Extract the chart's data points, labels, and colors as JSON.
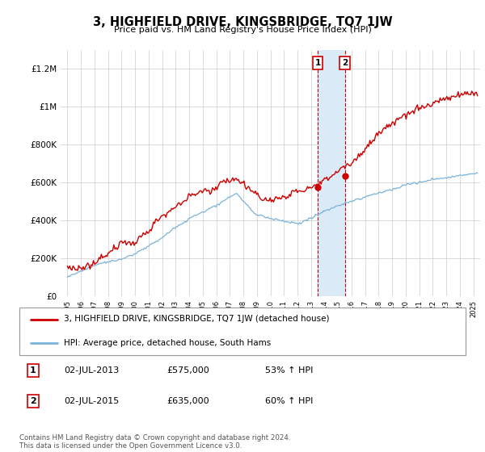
{
  "title": "3, HIGHFIELD DRIVE, KINGSBRIDGE, TQ7 1JW",
  "subtitle": "Price paid vs. HM Land Registry's House Price Index (HPI)",
  "ylabel_ticks": [
    "£0",
    "£200K",
    "£400K",
    "£600K",
    "£800K",
    "£1M",
    "£1.2M"
  ],
  "ytick_values": [
    0,
    200000,
    400000,
    600000,
    800000,
    1000000,
    1200000
  ],
  "ylim": [
    0,
    1300000
  ],
  "xlim_start": 1994.5,
  "xlim_end": 2025.5,
  "sale1_date": 2013.5,
  "sale1_price": 575000,
  "sale1_label": "1",
  "sale2_date": 2015.5,
  "sale2_price": 635000,
  "sale2_label": "2",
  "legend_line1": "3, HIGHFIELD DRIVE, KINGSBRIDGE, TQ7 1JW (detached house)",
  "legend_line2": "HPI: Average price, detached house, South Hams",
  "annotation1_date": "02-JUL-2013",
  "annotation1_price": "£575,000",
  "annotation1_hpi": "53% ↑ HPI",
  "annotation2_date": "02-JUL-2015",
  "annotation2_price": "£635,000",
  "annotation2_hpi": "60% ↑ HPI",
  "footer": "Contains HM Land Registry data © Crown copyright and database right 2024.\nThis data is licensed under the Open Government Licence v3.0.",
  "red_color": "#cc0000",
  "blue_color": "#7ab3d9",
  "highlight_color": "#daeaf7"
}
